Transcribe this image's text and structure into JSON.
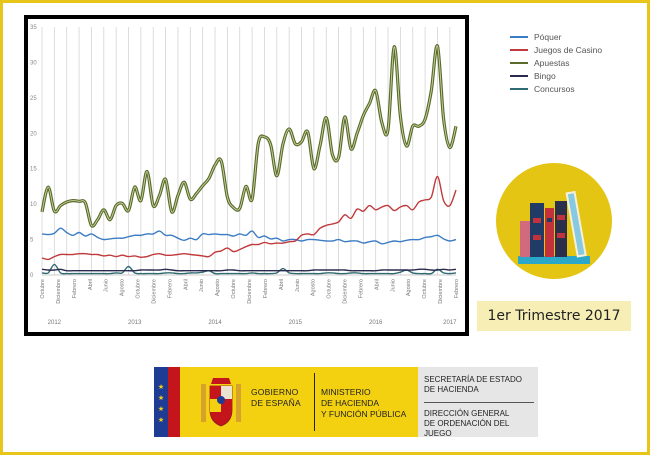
{
  "chart_data": {
    "type": "line",
    "title": "",
    "xlabel": "",
    "ylabel": "",
    "ylim": [
      0,
      35
    ],
    "y_ticks": [
      "0",
      "5",
      "10",
      "15",
      "20",
      "25",
      "30",
      "35"
    ],
    "month_labels": [
      "Octubre",
      "Diciembre",
      "Febrero",
      "Abril",
      "Junio",
      "Agosto",
      "Octubre",
      "Diciembre",
      "Febrero",
      "Abril",
      "Junio",
      "Agosto",
      "Octubre",
      "Diciembre",
      "Febrero",
      "Abril",
      "Junio",
      "Agosto",
      "Octubre",
      "Diciembre",
      "Febrero",
      "Abril",
      "Junio",
      "Agosto",
      "Octubre",
      "Diciembre",
      "Febrero"
    ],
    "year_labels": [
      {
        "label": "2012",
        "month_index": 2
      },
      {
        "label": "2013",
        "month_index": 15
      },
      {
        "label": "2014",
        "month_index": 28
      },
      {
        "label": "2015",
        "month_index": 41
      },
      {
        "label": "2016",
        "month_index": 54
      },
      {
        "label": "2017",
        "month_index": 66
      }
    ],
    "grid": true,
    "legend_position": "right",
    "series": [
      {
        "name": "Póquer",
        "color": "#3b7cc4",
        "values": [
          5.8,
          5.7,
          5.9,
          6.6,
          6.0,
          5.6,
          6.0,
          5.5,
          5.8,
          5.3,
          5.0,
          5.1,
          5.2,
          5.2,
          5.4,
          5.6,
          5.6,
          5.8,
          5.8,
          6.2,
          5.6,
          5.6,
          5.2,
          4.9,
          5.2,
          5.0,
          5.8,
          5.7,
          5.8,
          5.7,
          5.7,
          5.5,
          5.8,
          5.6,
          6.2,
          5.3,
          5.5,
          5.1,
          5.2,
          4.8,
          5.0,
          5.0,
          4.8,
          5.0,
          5.0,
          4.9,
          4.8,
          4.8,
          5.0,
          4.7,
          4.8,
          4.8,
          4.5,
          4.7,
          4.8,
          4.4,
          4.6,
          4.8,
          4.7,
          4.9,
          5.0,
          5.0,
          5.3,
          5.4,
          5.6,
          5.1,
          4.8,
          5.0
        ]
      },
      {
        "name": "Juegos de Casino",
        "color": "#c0393b",
        "values": [
          2.4,
          2.2,
          2.6,
          2.9,
          2.9,
          2.9,
          3.0,
          3.0,
          2.9,
          2.9,
          2.7,
          2.8,
          2.6,
          2.8,
          2.6,
          2.7,
          2.5,
          2.6,
          2.9,
          3.0,
          2.8,
          2.8,
          2.9,
          3.0,
          2.9,
          2.8,
          2.7,
          2.6,
          3.2,
          3.4,
          3.8,
          3.3,
          3.6,
          4.0,
          4.3,
          4.3,
          4.6,
          4.4,
          4.5,
          4.5,
          4.7,
          4.8,
          5.6,
          5.8,
          5.7,
          6.6,
          7.0,
          7.2,
          7.5,
          8.5,
          8.0,
          9.3,
          9.0,
          9.8,
          9.2,
          9.6,
          9.8,
          9.1,
          9.6,
          9.8,
          9.2,
          10.3,
          10.6,
          11.0,
          13.9,
          10.5,
          9.8,
          12.0
        ]
      },
      {
        "name": "Apuestas",
        "color": "#5a6b2c",
        "values": [
          8.9,
          12.4,
          9.0,
          9.8,
          10.3,
          10.5,
          10.4,
          10.2,
          7.0,
          7.8,
          9.2,
          7.8,
          9.8,
          10.1,
          9.1,
          12.4,
          10.5,
          14.6,
          9.8,
          11.2,
          13.5,
          8.9,
          11.2,
          13.1,
          10.7,
          11.5,
          12.6,
          13.6,
          15.5,
          16.1,
          11.0,
          9.5,
          9.4,
          12.5,
          10.7,
          18.6,
          19.5,
          18.4,
          14.0,
          18.5,
          20.6,
          18.5,
          18.8,
          20.2,
          15.0,
          18.3,
          22.2,
          17.0,
          16.6,
          22.3,
          17.8,
          20.0,
          22.5,
          24.2,
          26.0,
          21.5,
          20.5,
          32.2,
          22.4,
          18.2,
          21.0,
          21.0,
          22.0,
          26.0,
          32.3,
          22.0,
          18.0,
          21.0
        ]
      },
      {
        "name": "Bingo",
        "color": "#2a2a4e",
        "values": [
          0.8,
          0.7,
          0.7,
          0.8,
          0.6,
          0.6,
          0.6,
          0.6,
          0.6,
          0.6,
          0.6,
          0.6,
          0.6,
          0.6,
          0.6,
          0.6,
          0.7,
          0.7,
          0.7,
          0.7,
          0.8,
          0.7,
          0.6,
          0.6,
          0.6,
          0.6,
          0.6,
          0.6,
          0.6,
          0.6,
          0.7,
          0.7,
          0.6,
          0.6,
          0.6,
          0.6,
          0.6,
          0.6,
          0.6,
          0.6,
          0.6,
          0.6,
          0.6,
          0.6,
          0.7,
          0.7,
          0.7,
          0.7,
          0.7,
          0.7,
          0.6,
          0.6,
          0.6,
          0.6,
          0.6,
          0.7,
          0.7,
          0.7,
          0.7,
          0.7,
          0.7,
          0.8,
          0.8,
          0.7,
          0.7,
          0.8,
          0.7,
          0.8
        ]
      },
      {
        "name": "Concursos",
        "color": "#2f6b73",
        "values": [
          0.3,
          0.3,
          1.5,
          0.3,
          0.2,
          0.2,
          0.2,
          0.2,
          0.2,
          0.2,
          0.2,
          0.2,
          0.3,
          0.3,
          1.2,
          0.3,
          0.2,
          0.2,
          0.2,
          0.2,
          0.3,
          0.3,
          0.2,
          0.2,
          0.3,
          0.3,
          0.4,
          0.6,
          0.2,
          0.2,
          0.2,
          0.2,
          0.2,
          0.2,
          0.3,
          0.2,
          0.2,
          0.2,
          0.3,
          0.9,
          0.3,
          0.2,
          0.2,
          0.2,
          0.2,
          0.2,
          0.3,
          0.3,
          0.2,
          0.2,
          0.3,
          0.3,
          0.2,
          0.2,
          0.2,
          0.2,
          0.2,
          0.2,
          0.4,
          0.7,
          0.3,
          0.2,
          0.2,
          0.2,
          0.8,
          0.3,
          0.2,
          0.3
        ]
      }
    ]
  },
  "badge": {
    "period_label": "1er Trimestre 2017"
  },
  "footer": {
    "gov_line1": "GOBIERNO",
    "gov_line2": "DE ESPAÑA",
    "ministry_line1": "MINISTERIO",
    "ministry_line2": "DE HACIENDA",
    "ministry_line3": "Y FUNCIÓN PÚBLICA",
    "sec_line1": "SECRETARÍA DE ESTADO",
    "sec_line2": "DE HACIENDA",
    "dir_line1": "DIRECCIÓN GENERAL",
    "dir_line2": "DE ORDENACIÓN DEL JUEGO"
  }
}
